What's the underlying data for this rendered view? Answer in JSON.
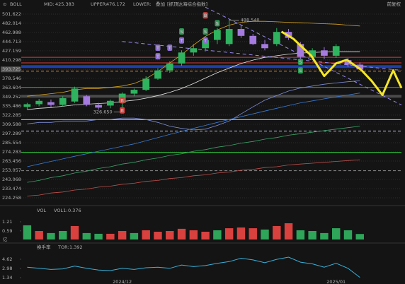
{
  "chart_data": [
    {
      "type": "candlestick",
      "title": "BOLL",
      "overlay_label": "叠加",
      "overlay_name": "[抓顶达海综合指数]",
      "adjust": "前复权",
      "log_scale": true,
      "grid": true,
      "xlim": [
        -0.5,
        31.5
      ],
      "ylim": [
        218.76,
        517.4
      ],
      "yticks": [
        501.622,
        482.014,
        462.988,
        444.713,
        427.159,
        410.298,
        393.725,
        378.546,
        363.604,
        349.252,
        335.486,
        322.285,
        309.588,
        297.289,
        285.554,
        274.283,
        263.456,
        253.057,
        243.068,
        233.474,
        224.258
      ],
      "up_color": "#2fb35f",
      "down_color": "#a57be0",
      "candles": [
        {
          "open": 334,
          "high": 340,
          "low": 330,
          "close": 338
        },
        {
          "open": 338,
          "high": 346,
          "low": 335,
          "close": 343
        },
        {
          "open": 341,
          "high": 345,
          "low": 334,
          "close": 337
        },
        {
          "open": 337,
          "high": 350,
          "low": 335,
          "close": 347
        },
        {
          "open": 342,
          "high": 365,
          "low": 340,
          "close": 362
        },
        {
          "open": 350,
          "high": 352,
          "low": 335,
          "close": 337
        },
        {
          "open": 337,
          "high": 340,
          "low": 330,
          "close": 333
        },
        {
          "open": 336,
          "high": 345,
          "low": 332,
          "close": 343
        },
        {
          "open": 340,
          "high": 356,
          "low": 326.65,
          "close": 354
        },
        {
          "open": 354,
          "high": 362,
          "low": 350,
          "close": 360
        },
        {
          "open": 360,
          "high": 382,
          "low": 358,
          "close": 378
        },
        {
          "open": 378,
          "high": 396,
          "low": 376,
          "close": 392
        },
        {
          "open": 392,
          "high": 408,
          "low": 388,
          "close": 404
        },
        {
          "open": 404,
          "high": 428,
          "low": 400,
          "close": 424
        },
        {
          "open": 424,
          "high": 440,
          "low": 418,
          "close": 432
        },
        {
          "open": 432,
          "high": 452,
          "low": 426,
          "close": 448
        },
        {
          "open": 448,
          "high": 472,
          "low": 440,
          "close": 468
        },
        {
          "open": 440,
          "high": 488.54,
          "low": 436,
          "close": 470
        },
        {
          "open": 470,
          "high": 478,
          "low": 452,
          "close": 456
        },
        {
          "open": 456,
          "high": 460,
          "low": 438,
          "close": 440
        },
        {
          "open": 440,
          "high": 448,
          "low": 428,
          "close": 432
        },
        {
          "open": 440,
          "high": 472,
          "low": 436,
          "close": 464
        },
        {
          "open": 464,
          "high": 470,
          "low": 448,
          "close": 452
        },
        {
          "open": 440,
          "high": 444,
          "low": 410,
          "close": 416
        },
        {
          "open": 416,
          "high": 432,
          "low": 410,
          "close": 428
        },
        {
          "open": 428,
          "high": 434,
          "low": 412,
          "close": 418
        },
        {
          "open": 418,
          "high": 440,
          "low": 414,
          "close": 436
        },
        {
          "open": 410,
          "high": 414,
          "low": 398,
          "close": 402
        },
        {
          "open": 402,
          "high": 406,
          "low": 393,
          "close": 393.725
        }
      ],
      "series": [
        {
          "name": "MID:",
          "color": "#e6e6e6",
          "values": [
            330,
            332,
            333,
            335,
            337,
            338,
            339,
            340,
            342,
            344,
            347,
            351,
            356,
            362,
            370,
            379,
            388,
            396,
            404,
            410,
            415,
            418,
            421,
            423,
            424,
            425,
            425.5,
            425.4,
            425.383
          ]
        },
        {
          "name": "UPPER:",
          "color": "#d9a520",
          "values": [
            350,
            352,
            354,
            356,
            360,
            362,
            362,
            364,
            366,
            370,
            378,
            390,
            405,
            420,
            438,
            455,
            468,
            478,
            484,
            486,
            486,
            485,
            484,
            483,
            482,
            481,
            480,
            478,
            476.172
          ]
        },
        {
          "name": "LOWER:",
          "color": "#7f8fd8",
          "values": [
            310,
            312,
            312,
            314,
            314,
            314,
            316,
            316,
            318,
            318,
            316,
            312,
            307,
            304,
            302,
            303,
            308,
            314,
            324,
            334,
            344,
            351,
            358,
            363,
            366,
            369,
            371,
            373,
            374.594
          ]
        },
        {
          "color": "#3a7bd5",
          "values": [
            257,
            260,
            263,
            266,
            269,
            272,
            275,
            278,
            281,
            284,
            288,
            292,
            296,
            300,
            304,
            308,
            312,
            316,
            320,
            324,
            328,
            332,
            336,
            340,
            343,
            346,
            349,
            352,
            355
          ]
        },
        {
          "color": "#3aa56a",
          "values": [
            240,
            242,
            245,
            247,
            250,
            252,
            255,
            257,
            260,
            262,
            265,
            267,
            270,
            272,
            275,
            277,
            280,
            282,
            285,
            287,
            290,
            292,
            295,
            297,
            299,
            301,
            303,
            305,
            307
          ]
        },
        {
          "color": "#c0504d",
          "values": [
            226,
            227,
            229,
            230,
            232,
            233,
            235,
            236,
            238,
            239,
            241,
            242,
            244,
            245,
            247,
            248,
            250,
            251,
            253,
            254,
            256,
            257,
            259,
            260,
            261,
            262,
            263,
            264,
            265
          ]
        }
      ],
      "levels": [
        {
          "value": 415.1,
          "color": "#d83a3a"
        },
        {
          "value": 405.2,
          "color": "#d83a3a"
        },
        {
          "value": 398.6,
          "color": "#1f3fa8",
          "width": 4
        },
        {
          "value": 390.7,
          "color": "#d98a2b",
          "dash": true
        },
        {
          "value": 364,
          "color": "#d23ad2"
        },
        {
          "value": 350,
          "color": "#4a4a4a",
          "width": 4
        },
        {
          "value": 315.9,
          "color": "#e8d24a"
        },
        {
          "value": 300.5,
          "color": "#c9c9f0",
          "dash": true
        },
        {
          "value": 273.7,
          "color": "#2ed23a"
        },
        {
          "value": 252.5,
          "color": "#888888",
          "dash": true
        }
      ],
      "trendlines": [
        {
          "color": "#9a8cf0",
          "x": [
            15,
            31.5
          ],
          "values": [
            517,
            337
          ]
        },
        {
          "color": "#9a8cf0",
          "x": [
            8,
            31.5
          ],
          "values": [
            445,
            392
          ]
        }
      ],
      "projection": {
        "color": "#f5e62a",
        "x": [
          21.4,
          22.4,
          23.9,
          25.0,
          26.0,
          26.9,
          28.1,
          29.0,
          29.9,
          30.8,
          31.5
        ],
        "values": [
          464.6,
          450.2,
          418.2,
          382.4,
          404.3,
          410.6,
          393.2,
          374.1,
          351.9,
          392.0,
          362.9
        ]
      },
      "signals": [
        {
          "x": 11,
          "value": 433,
          "label": "T",
          "color": "#8e6fd0"
        },
        {
          "x": 11,
          "value": 417,
          "label": "T",
          "color": "#8e6fd0"
        },
        {
          "x": 12,
          "value": 433,
          "label": "T",
          "color": "#8e6fd0"
        },
        {
          "x": 13,
          "value": 465,
          "label": "S",
          "color": "#2e9a55"
        },
        {
          "x": 13,
          "value": 447,
          "label": "T",
          "color": "#8e6fd0"
        },
        {
          "x": 15,
          "value": 499,
          "label": "B",
          "color": "#d9413f"
        },
        {
          "x": 15,
          "value": 465,
          "label": "S",
          "color": "#2e9a55"
        },
        {
          "x": 15,
          "value": 447,
          "label": "T",
          "color": "#8e6fd0"
        },
        {
          "x": 16,
          "value": 482,
          "label": "S",
          "color": "#2e9a55"
        },
        {
          "x": 23,
          "value": 407,
          "label": "S",
          "color": "#2e9a55"
        },
        {
          "x": 23,
          "value": 392,
          "label": "S",
          "color": "#2e9a55"
        },
        {
          "x": 8,
          "value": 344,
          "label": "B",
          "color": "#d9413f"
        },
        {
          "x": 8,
          "value": 329,
          "label": "B",
          "color": "#d9413f"
        }
      ],
      "annotations": [
        {
          "x": 17,
          "value": 488.54,
          "label": "488.540"
        },
        {
          "x": 8,
          "value": 326.65,
          "label": "326.650"
        }
      ]
    },
    {
      "type": "bar",
      "title": "VOL",
      "unit": "亿",
      "xlim": [
        -0.5,
        31.5
      ],
      "ylim": [
        0,
        1.98
      ],
      "yticks": [
        1.21,
        0.59
      ],
      "series": [
        {
          "name": "VOL1:",
          "color": "#e0603a",
          "values": [
            0.97,
            0.58,
            0.44,
            0.58,
            0.92,
            0.44,
            0.39,
            0.39,
            0.58,
            0.44,
            0.63,
            0.53,
            0.58,
            0.73,
            0.63,
            0.53,
            0.63,
            0.77,
            0.82,
            0.77,
            0.68,
            0.92,
            1.11,
            0.63,
            0.58,
            0.44,
            0.77,
            0.63,
            0.376
          ],
          "colors": [
            "#2fa55a",
            "#d9413f",
            "#2fa55a",
            "#2fa55a",
            "#d9413f",
            "#2fa55a",
            "#2fa55a",
            "#d9413f",
            "#d9413f",
            "#2fa55a",
            "#d9413f",
            "#d9413f",
            "#d9413f",
            "#d9413f",
            "#d9413f",
            "#d9413f",
            "#2fa55a",
            "#d9413f",
            "#d9413f",
            "#d9413f",
            "#2fa55a",
            "#d9413f",
            "#d9413f",
            "#2fa55a",
            "#2fa55a",
            "#2fa55a",
            "#2fa55a",
            "#2fa55a",
            "#2fa55a"
          ]
        }
      ]
    },
    {
      "type": "line",
      "title": "换手率",
      "xlim": [
        -0.5,
        31.5
      ],
      "ylim": [
        0.96,
        6.13
      ],
      "yticks": [
        4.62,
        2.98,
        1.34
      ],
      "categories": [
        null,
        null,
        null,
        null,
        null,
        null,
        null,
        null,
        "2024/12",
        null,
        null,
        null,
        null,
        null,
        null,
        null,
        null,
        null,
        null,
        null,
        null,
        null,
        null,
        null,
        null,
        null,
        "2025/01",
        null,
        null
      ],
      "series": [
        {
          "name": "TOR:",
          "color": "#3ab0d8",
          "values": [
            3.2,
            3.0,
            2.8,
            2.9,
            3.4,
            3.0,
            2.7,
            2.6,
            3.0,
            2.8,
            3.1,
            3.2,
            3.0,
            3.6,
            3.3,
            3.5,
            3.9,
            4.2,
            4.8,
            4.5,
            4.0,
            4.6,
            5.0,
            4.1,
            3.8,
            3.2,
            3.9,
            3.0,
            1.392
          ]
        }
      ]
    }
  ]
}
